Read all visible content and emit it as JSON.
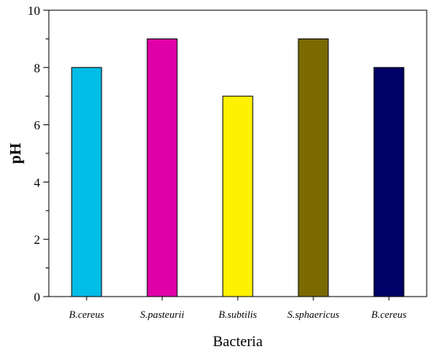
{
  "chart_data": {
    "type": "bar",
    "title": "",
    "xlabel": "Bacteria",
    "ylabel": "pH",
    "categories": [
      "B.cereus",
      "S.pasteurii",
      "B.subtilis",
      "S.sphaericus",
      "B.cereus"
    ],
    "values": [
      8,
      9,
      7,
      9,
      8
    ],
    "colors": [
      "#00BCE6",
      "#E000A8",
      "#FFF200",
      "#7A6A00",
      "#000066"
    ],
    "ylim": [
      0,
      10
    ],
    "yticks": [
      0,
      2,
      4,
      6,
      8,
      10
    ],
    "grid": false,
    "legend": "none"
  }
}
